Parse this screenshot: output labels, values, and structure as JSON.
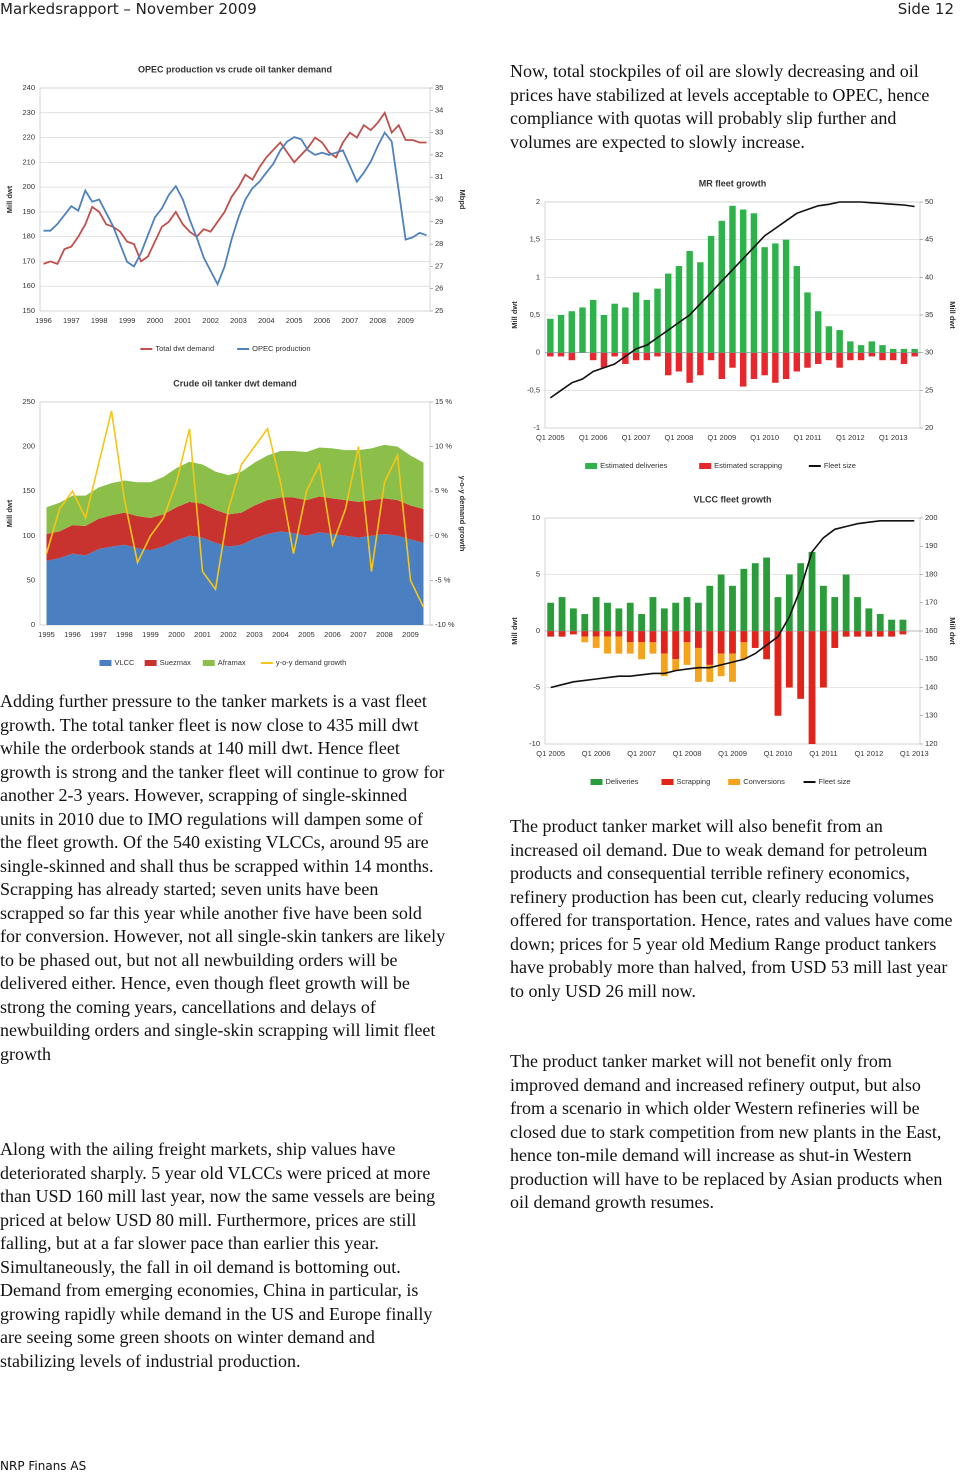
{
  "header": {
    "title": "Markedsrapport – November 2009",
    "page": "Side 12"
  },
  "footer": "NRP Finans AS",
  "paragraphs": {
    "left": [
      "Adding further pressure to the tanker markets is a vast fleet growth. The total tanker fleet is now close to 435 mill dwt while the orderbook stands at 140 mill dwt. Hence fleet growth is strong and the tanker fleet will continue to grow for another 2-3 years. However, scrapping of single-skinned units in 2010 due to IMO regulations will dampen some of the fleet growth. Of the 540 existing VLCCs, around 95 are single-skinned and shall thus be scrapped within 14 months. Scrapping has already started; seven units have been scrapped so far this year while another five have been sold for conversion. However, not all single-skin tankers are likely to be phased out, but not all newbuilding orders will be delivered either. Hence, even though fleet growth will be strong the coming years, cancellations and delays of newbuilding orders and single-skin scrapping will limit fleet growth",
      "Along with the ailing freight markets, ship values have deteriorated sharply. 5 year old VLCCs were priced at more than USD 160 mill last year, now the same vessels are being priced at below USD 80 mill. Furthermore, prices are still falling, but at a far slower pace than earlier this year. Simultaneously, the fall in oil demand is bottoming out. Demand from emerging economies, China in particular, is growing rapidly while demand in the US and Europe finally are seeing some green shoots on winter demand and stabilizing levels of industrial production."
    ],
    "right": [
      "Now, total stockpiles of oil are slowly decreasing and oil prices have stabilized at levels acceptable to OPEC, hence compliance with quotas will probably slip further and volumes are expected to slowly increase.",
      "The product tanker market will also benefit from an increased oil demand. Due to weak demand for petroleum products and consequential terrible refinery economics, refinery production has been cut, clearly reducing volumes offered for transportation. Hence, rates and values have come down; prices for 5 year old Medium Range product tankers have probably more than halved, from USD 53 mill last year to only USD 26 mill now.",
      "The product tanker market will not benefit only from improved demand and increased refinery output, but also from a scenario in which older Western refineries will be closed due to stark competition from new plants in the East, hence ton-mile demand will increase as shut-in Western production will have to be replaced by Asian products when oil demand growth resumes."
    ]
  },
  "chart_data": [
    {
      "type": "line",
      "title": "OPEC production vs crude oil tanker demand",
      "ylabel": "Mill dwt",
      "y2label": "Mbpd",
      "grid": true,
      "categories": [
        "1996",
        null,
        null,
        null,
        "1997",
        null,
        null,
        null,
        "1998",
        null,
        null,
        null,
        "1999",
        null,
        null,
        null,
        "2000",
        null,
        null,
        null,
        "2001",
        null,
        null,
        null,
        "2002",
        null,
        null,
        null,
        "2003",
        null,
        null,
        null,
        "2004",
        null,
        null,
        null,
        "2005",
        null,
        null,
        null,
        "2006",
        null,
        null,
        null,
        "2007",
        null,
        null,
        null,
        "2008",
        null,
        null,
        null,
        "2009",
        null,
        null,
        null
      ],
      "ylim": [
        150,
        240
      ],
      "yticks": [
        150,
        160,
        170,
        180,
        190,
        200,
        210,
        220,
        230,
        240
      ],
      "y2lim": [
        25,
        35
      ],
      "y2ticks": [
        25,
        26,
        27,
        28,
        29,
        30,
        31,
        32,
        33,
        34,
        35
      ],
      "series": [
        {
          "name": "Total dwt demand",
          "color": "#c0504d",
          "values": [
            169,
            170,
            169,
            175,
            176,
            180,
            185,
            192,
            190,
            185,
            184,
            182,
            178,
            177,
            170,
            172,
            178,
            184,
            186,
            190,
            185,
            182,
            180,
            183,
            182,
            186,
            190,
            196,
            200,
            205,
            203,
            208,
            212,
            215,
            218,
            214,
            210,
            213,
            216,
            220,
            218,
            214,
            212,
            218,
            222,
            220,
            225,
            223,
            226,
            230,
            222,
            225,
            219,
            219,
            218,
            218
          ]
        },
        {
          "name": "OPEC production",
          "color": "#4f81bd",
          "axis": "y2",
          "values": [
            28.6,
            28.6,
            28.9,
            29.3,
            29.7,
            29.5,
            30.4,
            29.9,
            30.0,
            29.4,
            28.8,
            28.0,
            27.2,
            27.0,
            27.6,
            28.4,
            29.2,
            29.6,
            30.2,
            30.6,
            30.0,
            29.1,
            28.3,
            27.4,
            26.8,
            26.2,
            27.0,
            28.2,
            29.2,
            30.0,
            30.5,
            30.8,
            31.2,
            31.6,
            32.2,
            32.6,
            32.8,
            32.7,
            32.2,
            32.0,
            32.1,
            32.0,
            32.1,
            32.2,
            31.5,
            30.8,
            31.2,
            31.7,
            32.4,
            33.0,
            32.6,
            30.4,
            28.2,
            28.3,
            28.5,
            28.4
          ]
        }
      ]
    },
    {
      "type": "area",
      "title": "Crude oil tanker dwt demand",
      "ylabel": "Mill dwt",
      "y2label": "y-o-y demand growth",
      "grid": false,
      "categories": [
        "1995",
        null,
        "1996",
        null,
        "1997",
        null,
        "1998",
        null,
        "1999",
        null,
        "2000",
        null,
        "2001",
        null,
        "2002",
        null,
        "2003",
        null,
        "2004",
        null,
        "2005",
        null,
        "2006",
        null,
        "2007",
        null,
        "2008",
        null,
        "2009",
        null
      ],
      "ylim": [
        0,
        250
      ],
      "yticks": [
        0,
        50,
        100,
        150,
        200,
        250
      ],
      "y2lim": [
        -10,
        15
      ],
      "y2ticks": [
        {
          "value": -10,
          "label": "-10 %"
        },
        {
          "value": -5,
          "label": "-5 %"
        },
        {
          "value": 0,
          "label": "0 %"
        },
        {
          "value": 5,
          "label": "5 %"
        },
        {
          "value": 10,
          "label": "10 %"
        },
        {
          "value": 15,
          "label": "15 %"
        }
      ],
      "series": [
        {
          "name": "VLCC",
          "color": "#4a7fc1",
          "values": [
            72,
            75,
            80,
            78,
            85,
            88,
            90,
            86,
            84,
            88,
            95,
            100,
            98,
            92,
            88,
            90,
            97,
            102,
            105,
            103,
            100,
            104,
            102,
            100,
            98,
            100,
            102,
            100,
            96,
            92
          ]
        },
        {
          "name": "Suezmax",
          "color": "#c8322f",
          "values": [
            30,
            30,
            32,
            33,
            34,
            35,
            36,
            36,
            36,
            36,
            37,
            38,
            38,
            37,
            36,
            36,
            37,
            38,
            38,
            40,
            40,
            40,
            40,
            40,
            40,
            40,
            40,
            40,
            38,
            38
          ]
        },
        {
          "name": "Aframax",
          "color": "#8cbf4a",
          "values": [
            30,
            32,
            33,
            34,
            35,
            36,
            36,
            38,
            40,
            42,
            44,
            45,
            44,
            43,
            44,
            46,
            48,
            50,
            52,
            52,
            54,
            55,
            56,
            56,
            58,
            58,
            60,
            60,
            56,
            52
          ]
        },
        {
          "name": "y-o-y demand growth",
          "color": "#f5c518",
          "type": "line",
          "axis": "y2",
          "values": [
            -2,
            3,
            5,
            2,
            8,
            14,
            4,
            -3,
            0,
            2,
            6,
            12,
            -4,
            -6,
            3,
            8,
            10,
            12,
            6,
            -2,
            5,
            8,
            -1,
            3,
            10,
            -4,
            6,
            9,
            -5,
            -8
          ]
        }
      ]
    },
    {
      "type": "bar",
      "title": "MR fleet growth",
      "ylabel": "Mill dwt",
      "y2label": "Mill dwt",
      "grid": true,
      "categories": [
        "Q1 2005",
        null,
        null,
        null,
        "Q1 2006",
        null,
        null,
        null,
        "Q1 2007",
        null,
        null,
        null,
        "Q1 2008",
        null,
        null,
        null,
        "Q1 2009",
        null,
        null,
        null,
        "Q1 2010",
        null,
        null,
        null,
        "Q1 2011",
        null,
        null,
        null,
        "Q1 2012",
        null,
        null,
        null,
        "Q1 2013",
        null,
        null
      ],
      "ylim": [
        -1,
        2
      ],
      "yticks": [
        -1,
        {
          "value": -0.5,
          "label": "-0,5"
        },
        0,
        {
          "value": 0.5,
          "label": "0,5"
        },
        1,
        {
          "value": 1.5,
          "label": "1,5"
        },
        2
      ],
      "y2lim": [
        20,
        50
      ],
      "y2ticks": [
        20,
        25,
        30,
        35,
        40,
        45,
        50
      ],
      "series": [
        {
          "name": "Estimated deliveries",
          "color": "#2db34a",
          "values": [
            0.45,
            0.5,
            0.55,
            0.6,
            0.7,
            0.5,
            0.65,
            0.6,
            0.8,
            0.7,
            0.85,
            1.05,
            1.15,
            1.35,
            1.2,
            1.55,
            1.75,
            1.95,
            1.9,
            1.85,
            1.4,
            1.45,
            1.5,
            1.15,
            0.8,
            0.55,
            0.35,
            0.3,
            0.15,
            0.1,
            0.15,
            0.1,
            0.05,
            0.05,
            0.05
          ]
        },
        {
          "name": "Estimated scrapping",
          "color": "#e8262b",
          "values": [
            -0.05,
            -0.05,
            -0.1,
            0,
            -0.1,
            -0.2,
            -0.05,
            -0.15,
            -0.1,
            -0.1,
            -0.05,
            -0.3,
            -0.25,
            -0.4,
            -0.3,
            -0.1,
            -0.35,
            -0.2,
            -0.45,
            -0.35,
            -0.3,
            -0.4,
            -0.35,
            -0.25,
            -0.2,
            -0.15,
            -0.1,
            -0.2,
            -0.1,
            -0.1,
            -0.05,
            -0.1,
            -0.1,
            -0.15,
            -0.05
          ]
        },
        {
          "name": "Fleet size",
          "color": "#111111",
          "type": "line",
          "axis": "y2",
          "values": [
            24,
            25,
            26,
            26.5,
            27.5,
            28,
            28.5,
            29.5,
            30.5,
            31,
            32,
            33,
            34,
            35,
            36.5,
            38,
            39.5,
            41,
            42.5,
            44,
            45.5,
            46.5,
            47.5,
            48.5,
            49,
            49.5,
            49.7,
            50,
            50,
            50,
            49.9,
            49.8,
            49.7,
            49.6,
            49.4
          ]
        }
      ]
    },
    {
      "type": "bar",
      "title": "VLCC fleet growth",
      "ylabel": "Mill dwt",
      "y2label": "Mill dwt",
      "grid": true,
      "categories": [
        "Q1 2005",
        null,
        null,
        null,
        "Q1 2006",
        null,
        null,
        null,
        "Q1 2007",
        null,
        null,
        null,
        "Q1 2008",
        null,
        null,
        null,
        "Q1 2009",
        null,
        null,
        null,
        "Q1 2010",
        null,
        null,
        null,
        "Q1 2011",
        null,
        null,
        null,
        "Q1 2012",
        null,
        null,
        null,
        "Q1 2013"
      ],
      "ylim": [
        -10,
        10
      ],
      "yticks": [
        -10,
        -5,
        0,
        5,
        10
      ],
      "y2lim": [
        120,
        200
      ],
      "y2ticks": [
        120,
        130,
        140,
        150,
        160,
        170,
        180,
        190,
        200
      ],
      "series": [
        {
          "name": "Deliveries",
          "color": "#2a9d3a",
          "values": [
            2.5,
            3,
            2,
            1.5,
            3,
            2.5,
            2,
            2.5,
            1.5,
            3,
            2,
            2.5,
            3,
            2.5,
            4,
            5,
            4,
            5.5,
            6,
            6.5,
            3,
            5,
            6,
            7,
            4,
            3,
            5,
            3,
            2,
            1.5,
            1,
            1,
            0
          ]
        },
        {
          "name": "Scrapping",
          "color": "#e2231a",
          "values": [
            -0.5,
            -0.5,
            -0.3,
            -0.5,
            -0.5,
            -0.5,
            -0.5,
            -1,
            -1,
            -1,
            -2,
            -2.5,
            -1,
            -1.5,
            -3,
            -2,
            -2,
            -1,
            -1.5,
            -2.5,
            -7.5,
            -5,
            -6,
            -10,
            -5,
            -1.5,
            -0.5,
            -0.5,
            -0.5,
            -0.5,
            -0.5,
            -0.3,
            0
          ]
        },
        {
          "name": "Conversions",
          "color": "#f4a31a",
          "values": [
            0,
            0,
            0,
            -0.5,
            -1,
            -1.5,
            -1.5,
            -1,
            -1.5,
            -1,
            -2,
            -1,
            -2,
            -3,
            -1.5,
            -2,
            -2.5,
            -1.5,
            0,
            0,
            0,
            0,
            0,
            0,
            0,
            0,
            0,
            0,
            0,
            0,
            0,
            0,
            0
          ]
        },
        {
          "name": "Fleet size",
          "color": "#111111",
          "type": "line",
          "axis": "y2",
          "values": [
            140,
            141,
            142,
            142.5,
            143,
            143.5,
            144,
            144,
            144.5,
            145,
            145,
            146,
            146.5,
            147,
            147,
            148,
            149,
            150,
            152,
            155,
            158,
            165,
            175,
            188,
            193,
            196,
            197,
            198,
            198.5,
            199,
            199,
            199,
            199
          ]
        }
      ]
    }
  ]
}
